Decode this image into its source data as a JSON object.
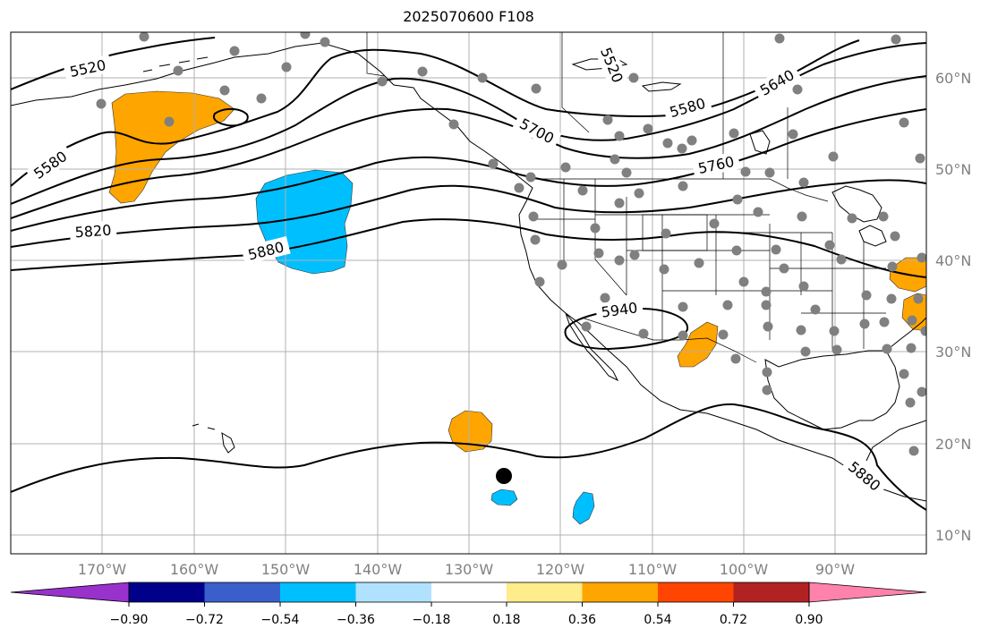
{
  "title": "2025070600 F108",
  "map": {
    "projection": "PlateCarree",
    "lon_range": [
      -180,
      -80
    ],
    "lat_range": [
      8,
      65
    ],
    "gridlines": true
  },
  "lon_labels": [
    "170°W",
    "160°W",
    "150°W",
    "140°W",
    "130°W",
    "120°W",
    "110°W",
    "100°W",
    "90°W"
  ],
  "lat_labels": [
    "60°N",
    "50°N",
    "40°N",
    "30°N",
    "20°N",
    "10°N"
  ],
  "contour_labels": [
    "5520",
    "5520",
    "5580",
    "5580",
    "5640",
    "5700",
    "5760",
    "5820",
    "5880",
    "5880",
    "5940"
  ],
  "colorbar": {
    "ticks": [
      "−0.90",
      "−0.72",
      "−0.54",
      "−0.36",
      "−0.18",
      "0.18",
      "0.36",
      "0.54",
      "0.72",
      "0.90"
    ],
    "colors": [
      "#9932cc",
      "#00008b",
      "#3a5fcd",
      "#00bfff",
      "#b0e2ff",
      "#ffffff",
      "#ffec8b",
      "#ffa500",
      "#ff4500",
      "#b22222",
      "#ff82ab"
    ]
  },
  "colors": {
    "positive_anomaly": "#ffa500",
    "negative_anomaly": "#00bfff",
    "station_marker": "#808080",
    "storm_marker": "#000000",
    "contour": "#000000",
    "grid": "#b0b0b0"
  }
}
